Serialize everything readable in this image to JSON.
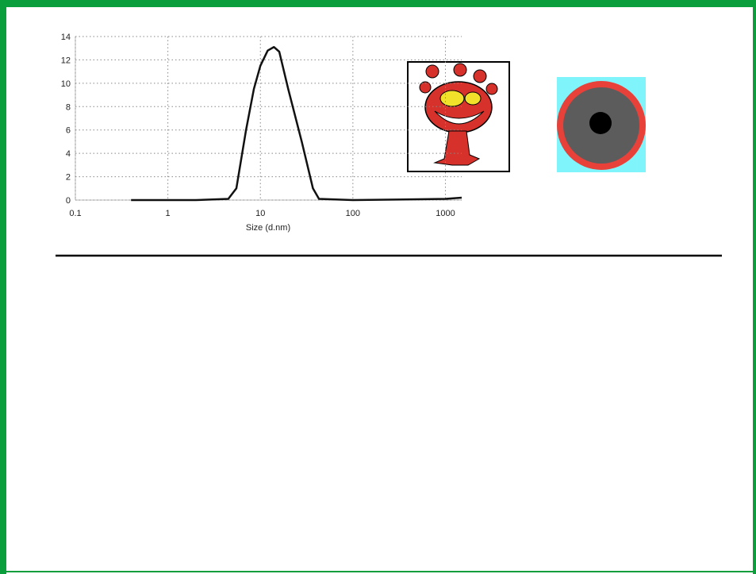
{
  "chart_data": {
    "type": "line",
    "xlabel": "Size (d.nm)",
    "log_x": true,
    "grid": true,
    "x": [
      0.4,
      2,
      4.5,
      5.5,
      7,
      8.5,
      10,
      12,
      14,
      16,
      20,
      28,
      37,
      43,
      100,
      1000,
      1500
    ],
    "series": [
      {
        "color": "#111111",
        "values": [
          0,
          0,
          0.1,
          1,
          6,
          9.5,
          11.5,
          12.8,
          13.1,
          12.7,
          9.5,
          5,
          1,
          0.1,
          0,
          0.1,
          0.2
        ]
      }
    ],
    "xlim": [
      0.1,
      1500
    ],
    "xticks": [
      0.1,
      1,
      10,
      100,
      1000
    ],
    "ylim": [
      0,
      14
    ],
    "yticks": [
      0,
      2,
      4,
      6,
      8,
      10,
      12,
      14
    ]
  }
}
